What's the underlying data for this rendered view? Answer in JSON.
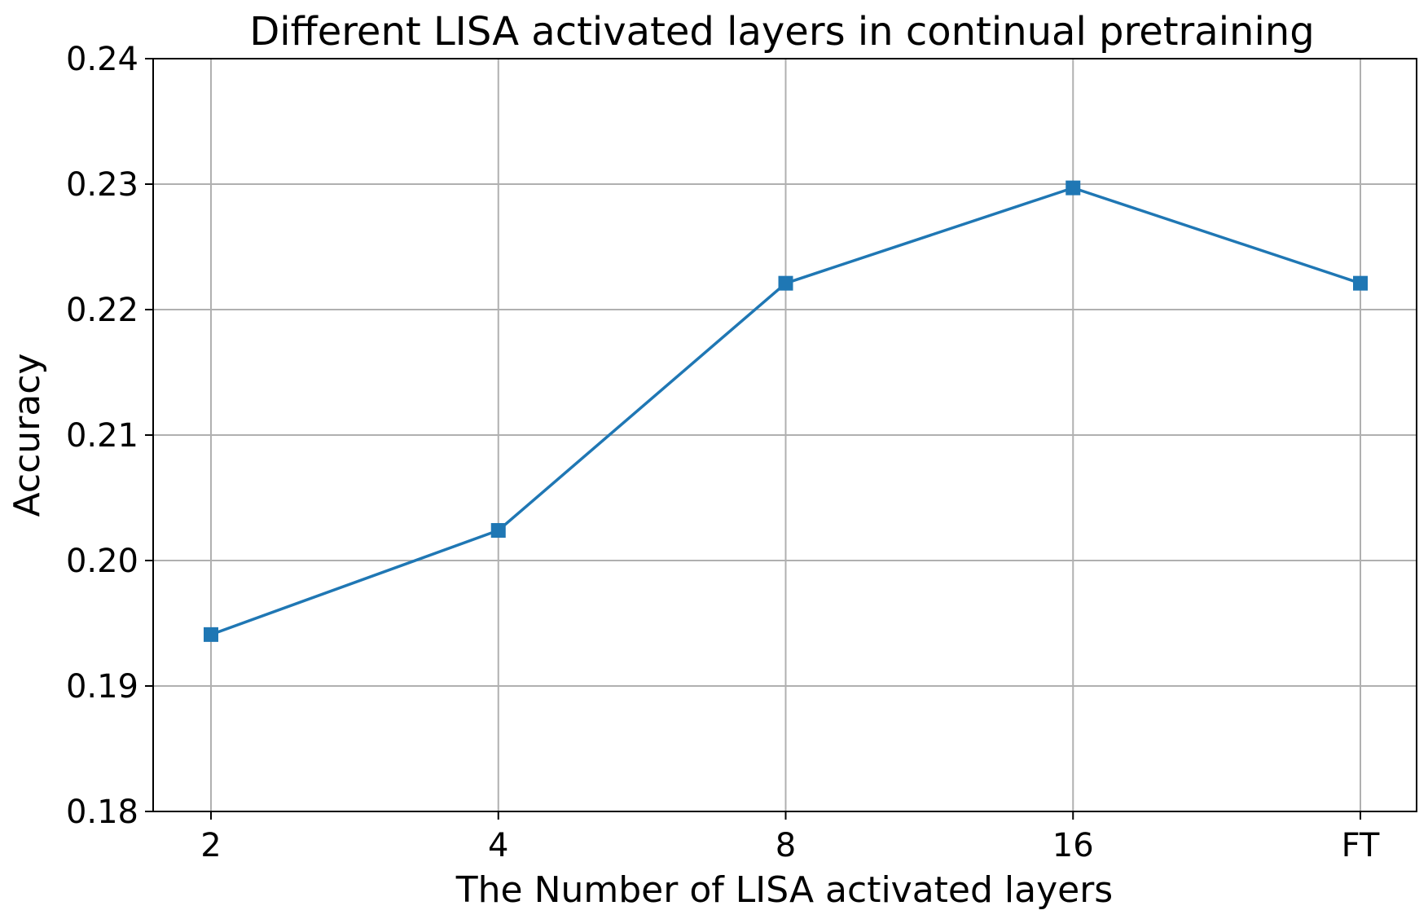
{
  "chart_data": {
    "type": "line",
    "title": "Different LISA activated layers in continual pretraining",
    "xlabel": "The Number of LISA activated layers",
    "ylabel": "Accuracy",
    "categories": [
      "2",
      "4",
      "8",
      "16",
      "FT"
    ],
    "series": [
      {
        "values": [
          0.1941,
          0.2024,
          0.2221,
          0.2297,
          0.2221
        ],
        "color": "#1f77b4",
        "marker": "square"
      }
    ],
    "ylim": [
      0.18,
      0.24
    ],
    "yticks": [
      "0.18",
      "0.19",
      "0.20",
      "0.21",
      "0.22",
      "0.23",
      "0.24"
    ],
    "grid": true
  }
}
